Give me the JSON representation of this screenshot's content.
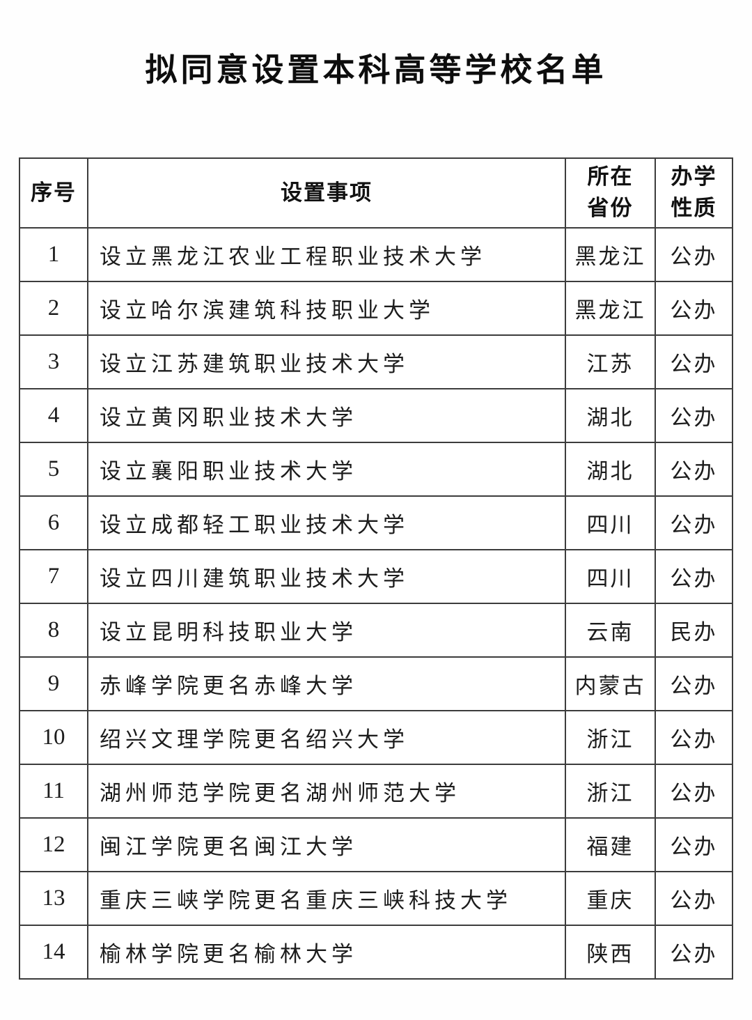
{
  "page": {
    "title": "拟同意设置本科高等学校名单"
  },
  "table": {
    "headers": {
      "index": "序号",
      "item": "设置事项",
      "province_line1": "所在",
      "province_line2": "省份",
      "nature_line1": "办学",
      "nature_line2": "性质"
    },
    "rows": [
      {
        "index": "1",
        "item": "设立黑龙江农业工程职业技术大学",
        "province": "黑龙江",
        "nature": "公办"
      },
      {
        "index": "2",
        "item": "设立哈尔滨建筑科技职业大学",
        "province": "黑龙江",
        "nature": "公办"
      },
      {
        "index": "3",
        "item": "设立江苏建筑职业技术大学",
        "province": "江苏",
        "nature": "公办"
      },
      {
        "index": "4",
        "item": "设立黄冈职业技术大学",
        "province": "湖北",
        "nature": "公办"
      },
      {
        "index": "5",
        "item": "设立襄阳职业技术大学",
        "province": "湖北",
        "nature": "公办"
      },
      {
        "index": "6",
        "item": "设立成都轻工职业技术大学",
        "province": "四川",
        "nature": "公办"
      },
      {
        "index": "7",
        "item": "设立四川建筑职业技术大学",
        "province": "四川",
        "nature": "公办"
      },
      {
        "index": "8",
        "item": "设立昆明科技职业大学",
        "province": "云南",
        "nature": "民办"
      },
      {
        "index": "9",
        "item": "赤峰学院更名赤峰大学",
        "province": "内蒙古",
        "nature": "公办"
      },
      {
        "index": "10",
        "item": "绍兴文理学院更名绍兴大学",
        "province": "浙江",
        "nature": "公办"
      },
      {
        "index": "11",
        "item": "湖州师范学院更名湖州师范大学",
        "province": "浙江",
        "nature": "公办"
      },
      {
        "index": "12",
        "item": "闽江学院更名闽江大学",
        "province": "福建",
        "nature": "公办"
      },
      {
        "index": "13",
        "item": "重庆三峡学院更名重庆三峡科技大学",
        "province": "重庆",
        "nature": "公办"
      },
      {
        "index": "14",
        "item": "榆林学院更名榆林大学",
        "province": "陕西",
        "nature": "公办"
      }
    ]
  }
}
